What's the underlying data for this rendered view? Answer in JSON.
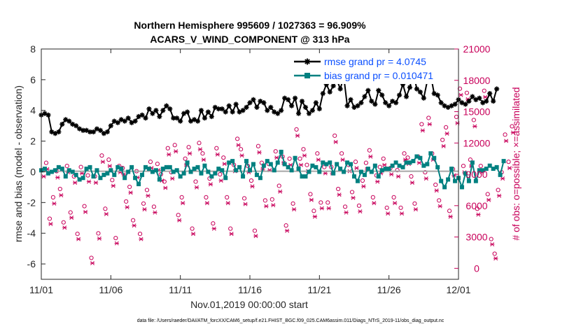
{
  "chart_data": {
    "type": "line",
    "title": "Northern Hemisphere 995609 / 1027363 = 96.909%",
    "subtitle": "ACARS_V_WIND_COMPONENT @ 313 hPa",
    "xlabel": "Nov.01,2019 00:00:00 start",
    "ylabel": "rmse and bias (model - observation)",
    "y2label": "# of obs: o=possible; ×=assimilated",
    "file_note": "data file: /Users/raeder/DAI/ATM_forcXX/CAM6_setup/f.e21.FHIST_BGC.f09_025.CAM6assim.011/Diags_NTrS_2019-11/obs_diag_output.nc",
    "xlim": [
      0,
      30
    ],
    "ylim": [
      -7,
      8
    ],
    "y2lim": [
      -1050,
      21000
    ],
    "x_ticks": [
      0,
      5,
      10,
      15,
      20,
      25,
      30
    ],
    "x_tick_labels": [
      "11/01",
      "11/06",
      "11/11",
      "11/16",
      "11/21",
      "11/26",
      "12/01"
    ],
    "y_ticks": [
      -6,
      -4,
      -2,
      0,
      2,
      4,
      6,
      8
    ],
    "y2_ticks": [
      0,
      3000,
      6000,
      9000,
      12000,
      15000,
      18000,
      21000
    ],
    "legend": {
      "rmse": "rmse grand pr = 4.0745",
      "bias": "bias grand pr = 0.010471"
    },
    "series": [
      {
        "name": "rmse",
        "color": "#000000",
        "x_start": 0,
        "x_step": 0.25,
        "values": [
          3.7,
          3.8,
          3.7,
          2.6,
          2.5,
          2.6,
          3.1,
          3.4,
          3.3,
          3.1,
          3.0,
          2.8,
          2.7,
          2.7,
          2.6,
          2.6,
          2.8,
          2.7,
          2.5,
          2.6,
          3.0,
          3.3,
          3.2,
          3.4,
          3.3,
          3.5,
          3.2,
          3.3,
          3.6,
          3.7,
          3.5,
          4.1,
          3.8,
          4.0,
          3.6,
          4.0,
          4.3,
          4.1,
          3.5,
          3.5,
          3.3,
          3.8,
          3.9,
          3.3,
          3.4,
          3.3,
          4.0,
          3.5,
          3.9,
          3.6,
          4.2,
          4.1,
          4.1,
          3.9,
          4.3,
          3.9,
          4.4,
          3.9,
          4.0,
          4.2,
          4.5,
          4.7,
          4.2,
          4.6,
          4.5,
          4.0,
          4.2,
          3.9,
          3.8,
          4.0,
          4.8,
          4.7,
          4.3,
          4.8,
          3.8,
          4.6,
          4.2,
          3.8,
          4.0,
          4.5,
          4.1,
          5.1,
          5.7,
          5.2,
          5.6,
          6.0,
          5.4,
          6.2,
          4.3,
          4.7,
          4.2,
          4.3,
          4.5,
          4.9,
          5.3,
          4.6,
          4.4,
          5.3,
          5.0,
          4.5,
          4.3,
          4.6,
          4.5,
          5.0,
          5.7,
          4.9,
          5.5,
          6.5,
          5.4,
          5.2,
          4.8,
          5.9,
          6.3,
          5.1,
          5.0,
          4.5,
          4.3,
          4.2,
          4.3,
          4.4,
          4.7,
          4.5,
          4.4,
          4.6,
          4.9,
          4.7,
          4.8,
          4.5,
          4.6,
          5.1,
          4.6,
          5.4
        ]
      },
      {
        "name": "bias",
        "color": "#008080",
        "x_start": 0,
        "x_step": 0.25,
        "values": [
          0.1,
          0.2,
          -0.1,
          0.0,
          0.1,
          0.3,
          0.2,
          -0.3,
          0.1,
          0.0,
          -0.2,
          -0.5,
          -0.4,
          0.2,
          0.3,
          -0.3,
          0.1,
          -0.4,
          -0.2,
          -0.1,
          0.1,
          -0.2,
          0.3,
          0.2,
          -0.4,
          0.0,
          0.3,
          -0.4,
          -0.8,
          -0.2,
          0.3,
          0.2,
          0.0,
          0.1,
          -0.5,
          0.2,
          0.3,
          0.3,
          0.0,
          0.1,
          -0.3,
          -0.1,
          0.6,
          0.0,
          0.2,
          0.3,
          -0.1,
          0.4,
          0.0,
          -0.3,
          -0.1,
          0.2,
          0.1,
          -0.4,
          0.6,
          0.7,
          0.1,
          0.3,
          -0.3,
          0.7,
          0.1,
          0.5,
          -0.2,
          -0.4,
          0.4,
          0.7,
          0.5,
          0.1,
          0.6,
          1.3,
          0.5,
          0.3,
          0.1,
          0.9,
          0.2,
          -0.3,
          -0.3,
          0.0,
          0.4,
          0.3,
          0.0,
          0.6,
          0.5,
          0.6,
          -0.1,
          0.5,
          0.2,
          0.0,
          0.6,
          0.5,
          -0.3,
          -0.6,
          0.0,
          -0.2,
          0.2,
          0.0,
          0.4,
          -0.3,
          0.1,
          0.2,
          0.2,
          0.4,
          0.6,
          0.4,
          0.3,
          0.6,
          0.6,
          0.7,
          1.0,
          0.9,
          0.4,
          0.5,
          1.2,
          0.9,
          0.3,
          -0.6,
          -1.0,
          -0.5,
          0.2,
          -0.6,
          -0.4,
          -1.0,
          -0.1,
          -0.6,
          0.6,
          -0.6,
          0.1,
          0.1,
          0.2,
          0.4,
          0.2,
          0.3,
          -0.2,
          0.7
        ]
      },
      {
        "name": "obs possible",
        "color": "#c8005a",
        "marker": "o",
        "x_start": 0.1,
        "x_step": 0.25,
        "values": [
          9400,
          10100,
          4750,
          6800,
          9300,
          7600,
          4400,
          9800,
          5350,
          8800,
          3300,
          9700,
          5950,
          8900,
          1000,
          8800,
          3350,
          10800,
          5700,
          10400,
          8450,
          2900,
          9800,
          9600,
          6400,
          7800,
          4600,
          9300,
          3300,
          6200,
          7500,
          10200,
          5900,
          10000,
          9000,
          8300,
          11500,
          9200,
          11800,
          5100,
          6800,
          10500,
          11600,
          3800,
          8300,
          12000,
          11000,
          6800,
          8600,
          4300,
          11500,
          9000,
          10600,
          6800,
          3800,
          9900,
          12400,
          11400,
          6700,
          9800,
          8400,
          3600,
          11700,
          10100,
          6500,
          10000,
          6600,
          11200,
          7900,
          10700,
          4100,
          10500,
          6200,
          13300,
          10500,
          11400,
          9900,
          7100,
          5500,
          11000,
          6300,
          9700,
          6300,
          9700,
          12700,
          7600,
          11000,
          5900,
          9900,
          7300,
          10200,
          6000,
          8400,
          10100,
          11300,
          6800,
          8900,
          9700,
          10500,
          5800,
          9600,
          6800,
          9400,
          5800,
          11000,
          10600,
          8800,
          6200,
          10700,
          13800,
          9200,
          14400,
          11000,
          8000,
          6500,
          12300,
          13500,
          5500,
          9500,
          14500,
          17200,
          9800,
          16800,
          10400,
          14200,
          5700,
          9800,
          17000,
          7100,
          2800,
          1400,
          7500,
          9200,
          12800,
          10200,
          13600
        ]
      },
      {
        "name": "obs assimilated",
        "color": "#c8005a",
        "marker": "x",
        "x_start": 0.1,
        "x_step": 0.25,
        "values": [
          9200,
          9900,
          4650,
          6600,
          9100,
          7400,
          4300,
          9600,
          5250,
          8600,
          3200,
          9500,
          5800,
          8700,
          900,
          8600,
          3250,
          10600,
          5600,
          10200,
          8300,
          2800,
          9600,
          9400,
          6250,
          7650,
          4500,
          9100,
          3200,
          6050,
          7350,
          10000,
          5750,
          9800,
          8800,
          8100,
          11300,
          9000,
          11600,
          5000,
          6650,
          10300,
          11400,
          3700,
          8150,
          11800,
          10800,
          6650,
          8450,
          4200,
          11300,
          8800,
          10400,
          6650,
          3700,
          9700,
          12200,
          11200,
          6550,
          9600,
          8250,
          3500,
          11500,
          9900,
          6350,
          9800,
          6450,
          11000,
          7750,
          10500,
          4000,
          10300,
          6050,
          13100,
          10300,
          11200,
          9700,
          6950,
          5350,
          10800,
          6150,
          9500,
          6150,
          9500,
          12500,
          7450,
          10800,
          5750,
          9700,
          7150,
          10000,
          5850,
          8250,
          9900,
          11100,
          6650,
          8700,
          9500,
          10300,
          5650,
          9400,
          6650,
          9200,
          5650,
          10800,
          10400,
          8600,
          6050,
          10500,
          13600,
          9000,
          14200,
          10800,
          7850,
          6350,
          12100,
          13300,
          5350,
          9300,
          14300,
          17000,
          9600,
          16600,
          10200,
          14000,
          5550,
          9600,
          16800,
          6950,
          2700,
          1350,
          7350,
          9000,
          12600,
          10000,
          13400
        ]
      }
    ]
  }
}
